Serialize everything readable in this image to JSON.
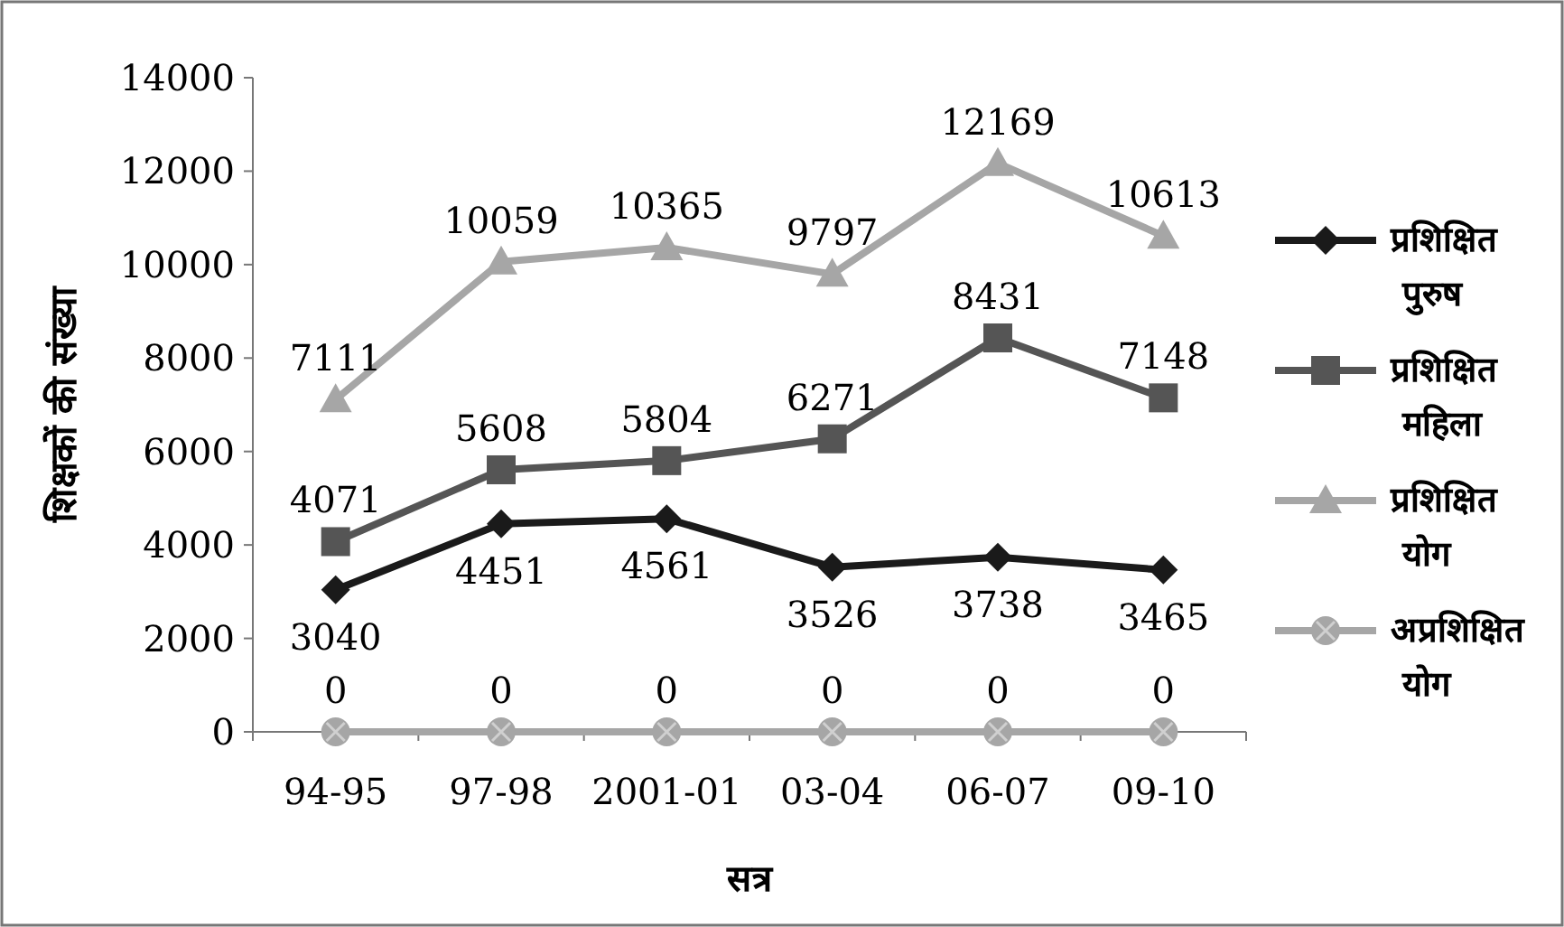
{
  "chart_data": {
    "type": "line",
    "xlabel": "सत्र",
    "ylabel": "शिक्षकों की संख्या",
    "categories": [
      "94-95",
      "97-98",
      "2001-01",
      "03-04",
      "06-07",
      "09-10"
    ],
    "series": [
      {
        "name": "प्रशिक्षित पुरुष",
        "color": "#1a1a1a",
        "marker": "diamond",
        "values": [
          3040,
          4451,
          4561,
          3526,
          3738,
          3465
        ]
      },
      {
        "name": "प्रशिक्षित महिला",
        "color": "#555555",
        "marker": "square",
        "values": [
          4071,
          5608,
          5804,
          6271,
          8431,
          7148
        ]
      },
      {
        "name": "प्रशिक्षित योग",
        "color": "#a6a6a6",
        "marker": "triangle",
        "values": [
          7111,
          10059,
          10365,
          9797,
          12169,
          10613
        ]
      },
      {
        "name": "अप्रशिक्षित योग",
        "color": "#a6a6a6",
        "marker": "circle",
        "values": [
          0,
          0,
          0,
          0,
          0,
          0
        ]
      }
    ],
    "ylim": [
      0,
      14000
    ],
    "yticks": [
      0,
      2000,
      4000,
      6000,
      8000,
      10000,
      12000,
      14000
    ],
    "grid": false,
    "legend": "right",
    "data_labels": true,
    "line_style": "solid"
  }
}
